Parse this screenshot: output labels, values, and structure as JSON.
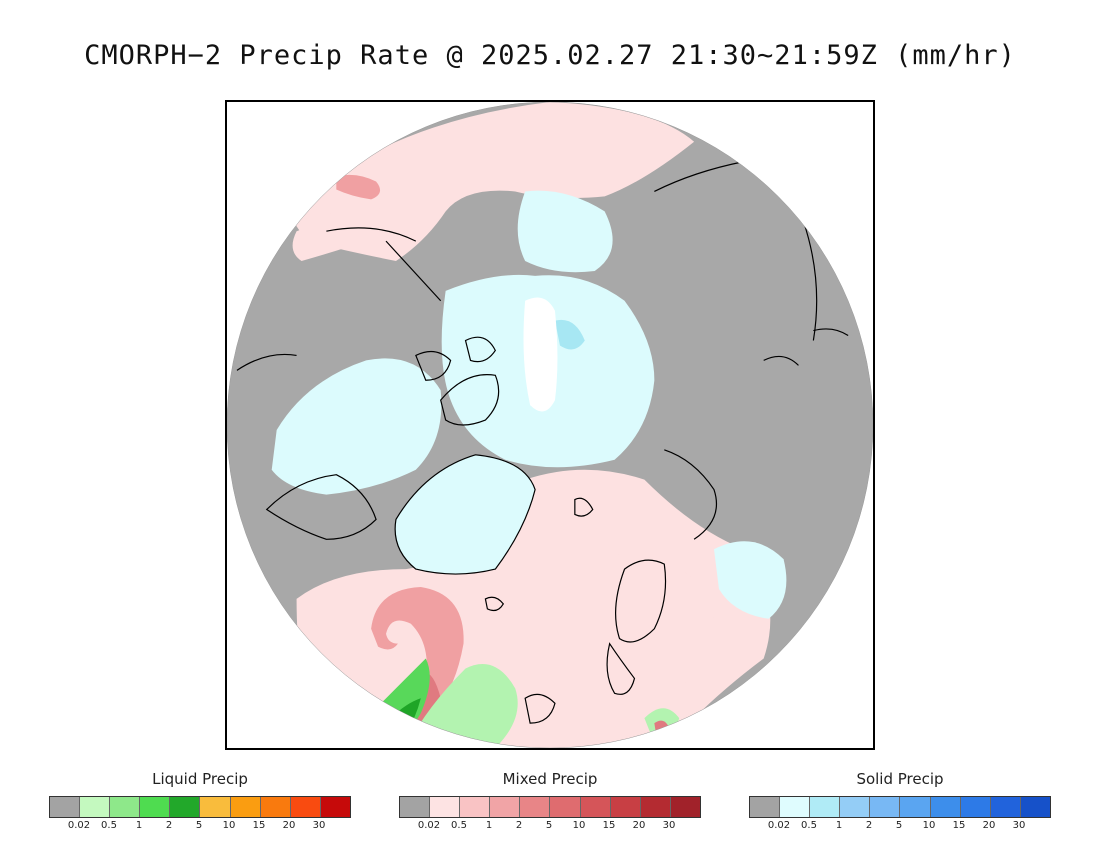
{
  "title": "CMORPH−2 Precip Rate @ 2025.02.27 21:30~21:59Z (mm/hr)",
  "map": {
    "projection": "north-polar-stereographic",
    "colors": {
      "no_precip": "#a8a8a8",
      "liquid_light": "#b3f3b0",
      "liquid_mid": "#58d85a",
      "liquid_heavy": "#1fa527",
      "mixed_light": "#fde1e1",
      "mixed_mid": "#f0a0a2",
      "mixed_heavy": "#e07a80",
      "solid_light": "#dcfbfd",
      "solid_mid": "#a7e7f3",
      "background": "#ffffff",
      "coast": "#000000"
    }
  },
  "legends": [
    {
      "title": "Liquid Precip",
      "colors": [
        "#a3a3a3",
        "#c4f9bf",
        "#8ee88a",
        "#4fdc50",
        "#22a82a",
        "#f9bc3c",
        "#fa9d11",
        "#f97a0e",
        "#f94b10",
        "#c60a0a"
      ],
      "ticks": [
        "0.02",
        "0.5",
        "1",
        "2",
        "5",
        "10",
        "15",
        "20",
        "30"
      ]
    },
    {
      "title": "Mixed Precip",
      "colors": [
        "#a3a3a3",
        "#fde3e3",
        "#f9c3c4",
        "#f1a4a6",
        "#e88587",
        "#df6c6f",
        "#d55559",
        "#c83f44",
        "#b42b31",
        "#a1222a"
      ],
      "ticks": [
        "0.02",
        "0.5",
        "1",
        "2",
        "5",
        "10",
        "15",
        "20",
        "30"
      ]
    },
    {
      "title": "Solid Precip",
      "colors": [
        "#a3a3a3",
        "#dffcfe",
        "#b0ebf6",
        "#94cdf6",
        "#78b8f4",
        "#5aa5f1",
        "#3d8eeb",
        "#2d7ae7",
        "#2163dc",
        "#1651c9"
      ],
      "ticks": [
        "0.02",
        "0.5",
        "1",
        "2",
        "5",
        "10",
        "15",
        "20",
        "30"
      ]
    }
  ]
}
